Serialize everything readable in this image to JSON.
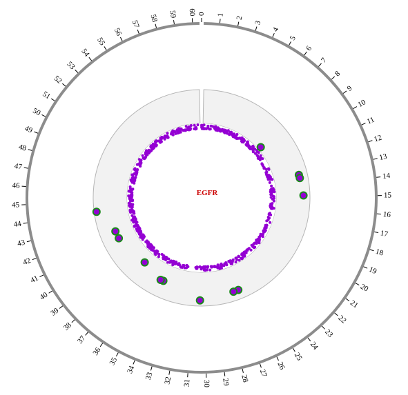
{
  "chart_data": {
    "type": "scatter",
    "layout": "circular",
    "center_label": "EGFR",
    "axis": {
      "min": 0,
      "max": 60.5,
      "tick_labels": [
        "0",
        "1",
        "2",
        "3",
        "4",
        "5",
        "6",
        "7",
        "8",
        "9",
        "10",
        "11",
        "12",
        "13",
        "14",
        "15",
        "16",
        "17",
        "18",
        "19",
        "20",
        "21",
        "22",
        "23",
        "24",
        "25",
        "26",
        "27",
        "28",
        "29",
        "30",
        "31",
        "32",
        "33",
        "34",
        "35",
        "36",
        "37",
        "38",
        "39",
        "40",
        "41",
        "42",
        "43",
        "44",
        "45",
        "46",
        "47",
        "48",
        "49",
        "50",
        "51",
        "52",
        "53",
        "54",
        "55",
        "56",
        "57",
        "58",
        "59",
        "60"
      ]
    },
    "colors": {
      "outer_ring": "#8c8c8c",
      "track_fill": "#f2f2f2",
      "track_stroke": "#b5b5b5",
      "point_fill": "#9400d3",
      "highlight_stroke": "#1a8a1a",
      "center_label": "#cc0000"
    },
    "density_band": {
      "r_min": 0.0,
      "r_max": 0.34
    },
    "highlight_points": [
      {
        "pos": 8.3,
        "r": 0.1
      },
      {
        "pos": 12.9,
        "r": 0.75
      },
      {
        "pos": 13.2,
        "r": 0.76
      },
      {
        "pos": 14.9,
        "r": 0.81
      },
      {
        "pos": 26.6,
        "r": 0.73
      },
      {
        "pos": 27.1,
        "r": 0.73
      },
      {
        "pos": 30.4,
        "r": 0.83
      },
      {
        "pos": 34.4,
        "r": 0.5
      },
      {
        "pos": 34.7,
        "r": 0.51
      },
      {
        "pos": 37.2,
        "r": 0.34
      },
      {
        "pos": 41.0,
        "r": 0.52
      },
      {
        "pos": 41.8,
        "r": 0.53
      },
      {
        "pos": 44.1,
        "r": 0.93
      }
    ]
  }
}
